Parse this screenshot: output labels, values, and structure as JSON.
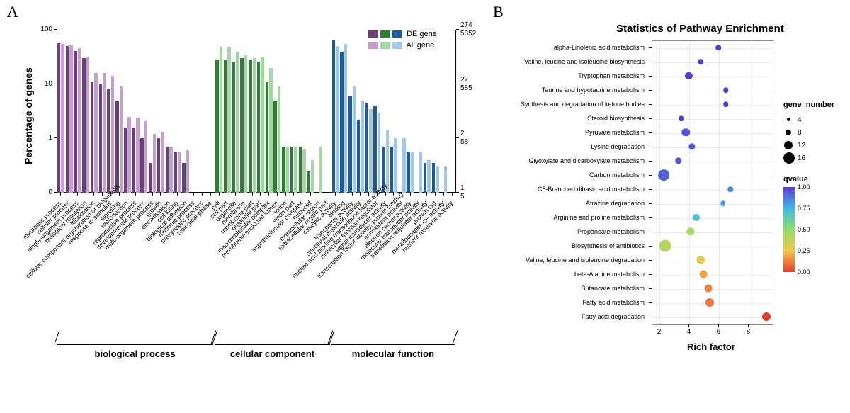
{
  "panelA": {
    "label": "A",
    "y_axis_left": {
      "title": "Percentage of genes",
      "ticks": [
        0,
        1,
        10,
        100
      ],
      "tick_labels": [
        "0",
        "1",
        "10",
        "100"
      ]
    },
    "y_axis_right": {
      "ticks_top": [
        "274",
        "5852"
      ],
      "ticks_mid": [
        "27",
        "585"
      ],
      "ticks_low": [
        "2",
        "58"
      ],
      "ticks_bot": [
        "1",
        "5"
      ]
    },
    "groups": [
      {
        "name": "biological process",
        "color_de": "#6b3d7a",
        "color_all": "#c4a0cf",
        "items": [
          {
            "label": "metabolic process",
            "de": 57,
            "all": 55
          },
          {
            "label": "cellular process",
            "de": 50,
            "all": 53
          },
          {
            "label": "single-organism process",
            "de": 41,
            "all": 46
          },
          {
            "label": "biological regulation",
            "de": 30,
            "all": 32
          },
          {
            "label": "localization",
            "de": 11,
            "all": 16
          },
          {
            "label": "cellular component organization or biogenesis",
            "de": 10,
            "all": 16
          },
          {
            "label": "response to stimulus",
            "de": 8,
            "all": 14
          },
          {
            "label": "signaling",
            "de": 5,
            "all": 9
          },
          {
            "label": "reproduction",
            "de": 1.6,
            "all": 2.5
          },
          {
            "label": "reproductive process",
            "de": 1.6,
            "all": 2.4
          },
          {
            "label": "developmental process",
            "de": 1.0,
            "all": 2.1
          },
          {
            "label": "multi-organism process",
            "de": 0.35,
            "all": 1.2
          },
          {
            "label": "growth",
            "de": 1.0,
            "all": 1.3
          },
          {
            "label": "detoxification",
            "de": 0.7,
            "all": 0.7
          },
          {
            "label": "cell killing",
            "de": 0.55,
            "all": 0.55
          },
          {
            "label": "biological adhesion",
            "de": 0.35,
            "all": 0.6
          },
          {
            "label": "rhythmic process",
            "de": 0,
            "all": 0
          },
          {
            "label": "presynaptic process",
            "de": 0,
            "all": 0
          },
          {
            "label": "biological phase",
            "de": 0,
            "all": 0
          }
        ]
      },
      {
        "name": "cellular component",
        "color_de": "#2e7d32",
        "color_all": "#a5d6a7",
        "items": [
          {
            "label": "cell",
            "de": 28,
            "all": 49
          },
          {
            "label": "cell part",
            "de": 28,
            "all": 49
          },
          {
            "label": "organelle",
            "de": 26,
            "all": 40
          },
          {
            "label": "membrane",
            "de": 30,
            "all": 34
          },
          {
            "label": "membrane part",
            "de": 28,
            "all": 30
          },
          {
            "label": "organelle part",
            "de": 26,
            "all": 32
          },
          {
            "label": "macromolecular complex",
            "de": 11,
            "all": 20
          },
          {
            "label": "membrane-enclosed lumen",
            "de": 5,
            "all": 9
          },
          {
            "label": "virion",
            "de": 0.7,
            "all": 0.7
          },
          {
            "label": "virion part",
            "de": 0.7,
            "all": 0.7
          },
          {
            "label": "supramolecular complex",
            "de": 0.7,
            "all": 0.65
          },
          {
            "label": "nucleoid",
            "de": 0.25,
            "all": 0.4
          },
          {
            "label": "extracellular region",
            "de": 0,
            "all": 0.7
          },
          {
            "label": "extracellular region part",
            "de": 0,
            "all": 0
          }
        ]
      },
      {
        "name": "molecular function",
        "color_de": "#1e5b99",
        "color_all": "#a3c7e6",
        "items": [
          {
            "label": "catalytic activity",
            "de": 65,
            "all": 50
          },
          {
            "label": "binding",
            "de": 40,
            "all": 55
          },
          {
            "label": "transporter activity",
            "de": 6,
            "all": 9
          },
          {
            "label": "structural molecule activity",
            "de": 2.2,
            "all": 5
          },
          {
            "label": "nucleic acid binding transcription factor activity",
            "de": 4.5,
            "all": 3.5
          },
          {
            "label": "molecular function regulator",
            "de": 4,
            "all": 3
          },
          {
            "label": "signal transducer activity",
            "de": 0.7,
            "all": 1.4
          },
          {
            "label": "transcription factor activity, protein binding",
            "de": 0.7,
            "all": 1.0
          },
          {
            "label": "antioxidant activity",
            "de": 0,
            "all": 1.0
          },
          {
            "label": "electron carrier activity",
            "de": 0.55,
            "all": 0.55
          },
          {
            "label": "molecular transducer activity",
            "de": 0,
            "all": 0.55
          },
          {
            "label": "translation regulator activity",
            "de": 0.35,
            "all": 0.4
          },
          {
            "label": "protein tag",
            "de": 0.35,
            "all": 0.3
          },
          {
            "label": "metallochaperone activity",
            "de": 0,
            "all": 0.3
          },
          {
            "label": "nutrient reservoir activity",
            "de": 0,
            "all": 0
          }
        ]
      }
    ],
    "legend": {
      "de": "DE gene",
      "all": "All gene"
    }
  },
  "panelB": {
    "label": "B",
    "title": "Statistics of Pathway Enrichment",
    "x_axis": {
      "title": "Rich factor",
      "ticks": [
        2,
        4,
        6,
        8
      ]
    },
    "qvalue_legend": {
      "title": "qvalue",
      "ticks": [
        "1.00",
        "0.75",
        "0.50",
        "0.25",
        "0.00"
      ],
      "colors": [
        "#5b3bd1",
        "#3fb8e8",
        "#8fe06a",
        "#f4c74e",
        "#e43d2e"
      ]
    },
    "gene_number_legend": {
      "title": "gene_number",
      "items": [
        {
          "n": 4,
          "r": 2.5
        },
        {
          "n": 8,
          "r": 4
        },
        {
          "n": 12,
          "r": 6
        },
        {
          "n": 16,
          "r": 8
        }
      ]
    },
    "points": [
      {
        "label": "alpha-Linolenic acid metabolism",
        "x": 6.0,
        "n": 2,
        "q": 1.0
      },
      {
        "label": "Valine, leucine and isoleucine biosynthesis",
        "x": 4.8,
        "n": 2,
        "q": 1.0
      },
      {
        "label": "Tryptophan metabolism",
        "x": 4.0,
        "n": 5,
        "q": 1.0
      },
      {
        "label": "Taurine and hypotaurine metabolism",
        "x": 6.5,
        "n": 2,
        "q": 1.0
      },
      {
        "label": "Synthesis and degradation of ketone bodies",
        "x": 6.5,
        "n": 2,
        "q": 1.0
      },
      {
        "label": "Steroid biosynthesis",
        "x": 3.5,
        "n": 2,
        "q": 1.0
      },
      {
        "label": "Pyruvate metabolism",
        "x": 3.8,
        "n": 7,
        "q": 0.95
      },
      {
        "label": "Lysine degradation",
        "x": 4.2,
        "n": 4,
        "q": 0.95
      },
      {
        "label": "Glyoxylate and dicarboxylate metabolism",
        "x": 3.3,
        "n": 4,
        "q": 0.95
      },
      {
        "label": "Carbon metabolism",
        "x": 2.3,
        "n": 16,
        "q": 0.92
      },
      {
        "label": "C5-Branched dibasic acid metabolism",
        "x": 6.8,
        "n": 2,
        "q": 0.85
      },
      {
        "label": "Atrazine degradation",
        "x": 6.3,
        "n": 2,
        "q": 0.8
      },
      {
        "label": "Arginine and proline metabolism",
        "x": 4.5,
        "n": 5,
        "q": 0.7
      },
      {
        "label": "Propanoate metabolism",
        "x": 4.1,
        "n": 7,
        "q": 0.45
      },
      {
        "label": "Biosynthesis of antibiotics",
        "x": 2.4,
        "n": 19,
        "q": 0.4
      },
      {
        "label": "Valine, leucine and isoleucine degradation",
        "x": 4.8,
        "n": 7,
        "q": 0.3
      },
      {
        "label": "beta-Alanine metabolism",
        "x": 5.0,
        "n": 6,
        "q": 0.18
      },
      {
        "label": "Butanoate metabolism",
        "x": 5.3,
        "n": 6,
        "q": 0.13
      },
      {
        "label": "Fatty acid metabolism",
        "x": 5.4,
        "n": 8,
        "q": 0.1
      },
      {
        "label": "Fatty acid degradation",
        "x": 9.2,
        "n": 8,
        "q": 0.0
      }
    ]
  }
}
